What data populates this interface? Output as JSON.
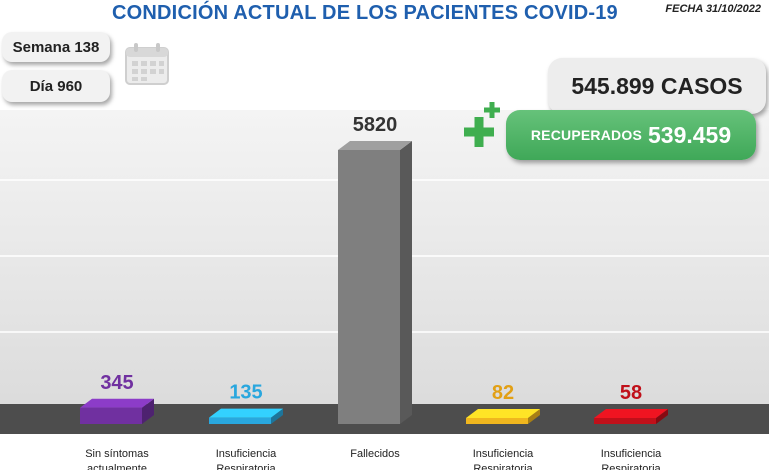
{
  "header": {
    "title": "CONDICIÓN ACTUAL DE LOS PACIENTES COVID-19",
    "fecha": "FECHA 31/10/2022"
  },
  "info": {
    "semana": "Semana 138",
    "dia": "Día 960"
  },
  "totals": {
    "casos": "545.899 CASOS",
    "recuperados_label": "RECUPERADOS",
    "recuperados_value": "539.459"
  },
  "icons": {
    "calendar": "calendar-icon",
    "plus": "plus-icon"
  },
  "colors": {
    "title": "#1f5fae",
    "recovered": "#4cb464"
  },
  "chart_data": {
    "type": "bar",
    "title": "CONDICIÓN ACTUAL DE LOS PACIENTES COVID-19",
    "categories": [
      "Sin síntomas actualmente",
      "Insuficiencia Respiratoria Aguda",
      "Fallecidos",
      "Insuficiencia Respiratoria Aguda",
      "Insuficiencia Respiratoria Aguda"
    ],
    "values": [
      345,
      135,
      5820,
      82,
      58
    ],
    "value_labels": [
      "345",
      "135",
      "5820",
      "82",
      "58"
    ],
    "colors": [
      "#7030a0",
      "#29a7de",
      "#7f7f7f",
      "#f0b61e",
      "#c0101a"
    ],
    "label_colors": [
      "#7030a0",
      "#29a7de",
      "#333333",
      "#e2a015",
      "#c0101a"
    ],
    "xlabel": "",
    "ylabel": "",
    "ylim": [
      0,
      5820
    ]
  }
}
